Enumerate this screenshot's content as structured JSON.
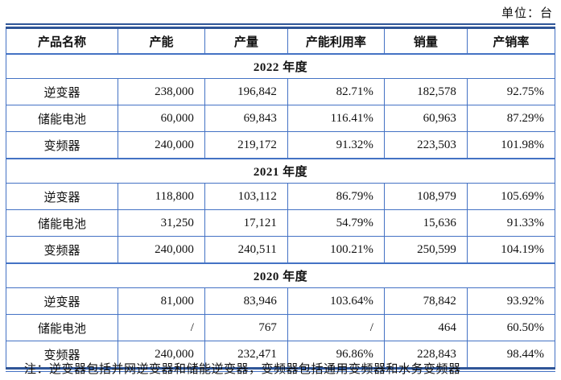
{
  "unit_label": "单位：台",
  "table": {
    "headers": [
      "产品名称",
      "产能",
      "产量",
      "产能利用率",
      "销量",
      "产销率"
    ],
    "col_widths_pct": [
      20.4,
      15.8,
      15.1,
      17.6,
      15.1,
      16.0
    ],
    "sections": [
      {
        "year_label": "2022 年度",
        "rows": [
          [
            "逆变器",
            "238,000",
            "196,842",
            "82.71%",
            "182,578",
            "92.75%"
          ],
          [
            "储能电池",
            "60,000",
            "69,843",
            "116.41%",
            "60,963",
            "87.29%"
          ],
          [
            "变频器",
            "240,000",
            "219,172",
            "91.32%",
            "223,503",
            "101.98%"
          ]
        ]
      },
      {
        "year_label": "2021 年度",
        "rows": [
          [
            "逆变器",
            "118,800",
            "103,112",
            "86.79%",
            "108,979",
            "105.69%"
          ],
          [
            "储能电池",
            "31,250",
            "17,121",
            "54.79%",
            "15,636",
            "91.33%"
          ],
          [
            "变频器",
            "240,000",
            "240,511",
            "100.21%",
            "250,599",
            "104.19%"
          ]
        ]
      },
      {
        "year_label": "2020 年度",
        "rows": [
          [
            "逆变器",
            "81,000",
            "83,946",
            "103.64%",
            "78,842",
            "93.92%"
          ],
          [
            "储能电池",
            "/",
            "767",
            "/",
            "464",
            "60.50%"
          ],
          [
            "变频器",
            "240,000",
            "232,471",
            "96.86%",
            "228,843",
            "98.44%"
          ]
        ]
      }
    ]
  },
  "note": "注：逆变器包括并网逆变器和储能逆变器，变频器包括通用变频器和水务变频器",
  "colors": {
    "border_blue": "#4472c4",
    "border_dark_blue": "#2f5597",
    "text": "#111111",
    "background": "#ffffff"
  }
}
